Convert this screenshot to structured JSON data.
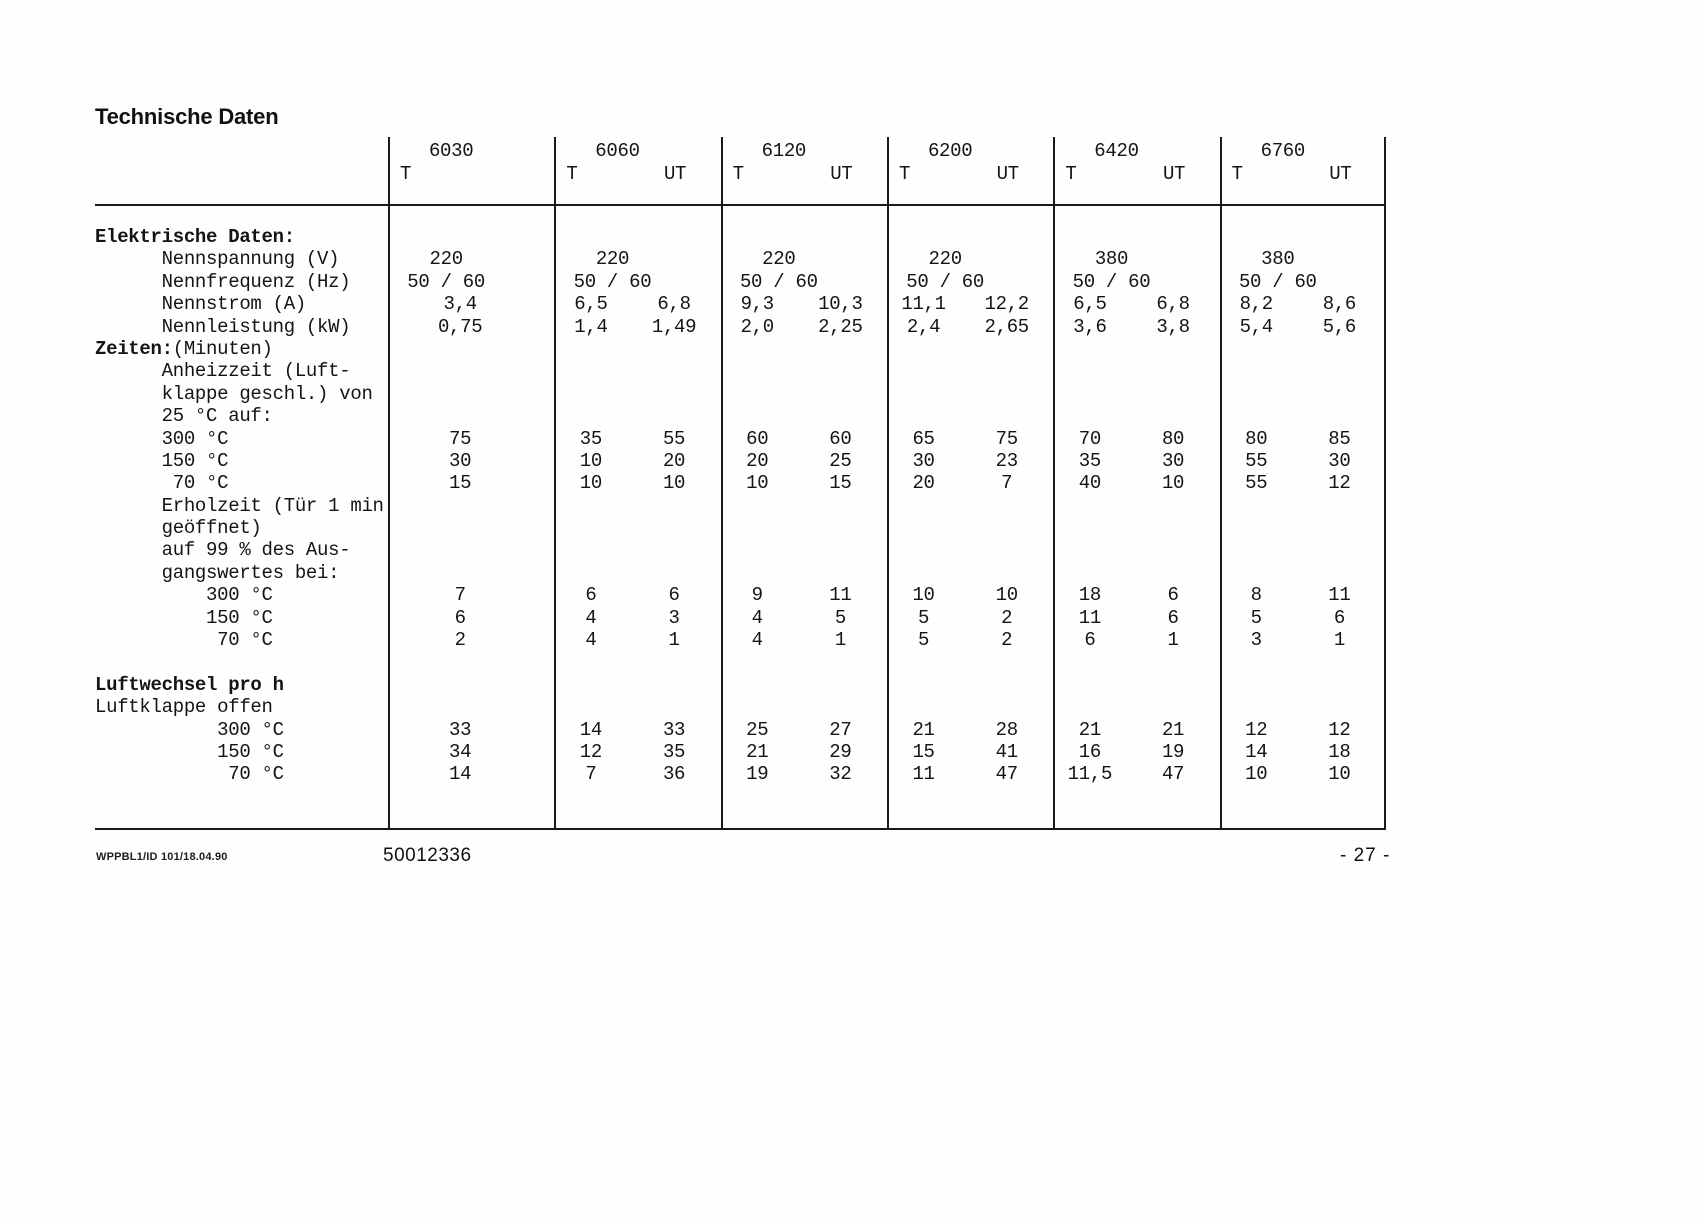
{
  "page": {
    "title": "Technische Daten",
    "footer_code": "WPPBL1/ID 101/18.04.90",
    "footer_doc_number": "50012336",
    "footer_page_number": "- 27 -"
  },
  "table": {
    "models": [
      {
        "name": "6030",
        "sub": [
          "T"
        ]
      },
      {
        "name": "6060",
        "sub": [
          "T",
          "UT"
        ]
      },
      {
        "name": "6120",
        "sub": [
          "T",
          "UT"
        ]
      },
      {
        "name": "6200",
        "sub": [
          "T",
          "UT"
        ]
      },
      {
        "name": "6420",
        "sub": [
          "T",
          "UT"
        ]
      },
      {
        "name": "6760",
        "sub": [
          "T",
          "UT"
        ]
      }
    ],
    "rows": [
      {
        "label_bold": "Elektrische Daten:",
        "label": ""
      },
      {
        "label": "      Nennspannung (V)",
        "span": [
          "220",
          "220",
          "220",
          "220",
          "380",
          "380"
        ]
      },
      {
        "label": "      Nennfrequenz (Hz)",
        "span": [
          "50 / 60",
          "50 / 60",
          "50 / 60",
          "50 / 60",
          "50 / 60",
          "50 / 60"
        ]
      },
      {
        "label": "      Nennstrom (A)",
        "pairs": [
          [
            "3,4"
          ],
          [
            "6,5",
            "6,8"
          ],
          [
            "9,3",
            "10,3"
          ],
          [
            "11,1",
            "12,2"
          ],
          [
            "6,5",
            "6,8"
          ],
          [
            "8,2",
            "8,6"
          ]
        ]
      },
      {
        "label": "      Nennleistung (kW)",
        "pairs": [
          [
            "0,75"
          ],
          [
            "1,4",
            "1,49"
          ],
          [
            "2,0",
            "2,25"
          ],
          [
            "2,4",
            "2,65"
          ],
          [
            "3,6",
            "3,8"
          ],
          [
            "5,4",
            "5,6"
          ]
        ]
      },
      {
        "label_bold": "Zeiten:",
        "label": "(Minuten)"
      },
      {
        "label": "      Anheizzeit (Luft-"
      },
      {
        "label": "      klappe geschl.) von"
      },
      {
        "label": "      25 °C auf:"
      },
      {
        "label": "      300 °C",
        "pairs": [
          [
            "75"
          ],
          [
            "35",
            "55"
          ],
          [
            "60",
            "60"
          ],
          [
            "65",
            "75"
          ],
          [
            "70",
            "80"
          ],
          [
            "80",
            "85"
          ]
        ]
      },
      {
        "label": "      150 °C",
        "pairs": [
          [
            "30"
          ],
          [
            "10",
            "20"
          ],
          [
            "20",
            "25"
          ],
          [
            "30",
            "23"
          ],
          [
            "35",
            "30"
          ],
          [
            "55",
            "30"
          ]
        ]
      },
      {
        "label": "       70 °C",
        "pairs": [
          [
            "15"
          ],
          [
            "10",
            "10"
          ],
          [
            "10",
            "15"
          ],
          [
            "20",
            "7"
          ],
          [
            "40",
            "10"
          ],
          [
            "55",
            "12"
          ]
        ]
      },
      {
        "label": "      Erholzeit (Tür 1 min"
      },
      {
        "label": "      geöffnet)"
      },
      {
        "label": "      auf 99 % des Aus-"
      },
      {
        "label": "      gangswertes bei:"
      },
      {
        "label": "          300 °C",
        "pairs": [
          [
            "7"
          ],
          [
            "6",
            "6"
          ],
          [
            "9",
            "11"
          ],
          [
            "10",
            "10"
          ],
          [
            "18",
            "6"
          ],
          [
            "8",
            "11"
          ]
        ]
      },
      {
        "label": "          150 °C",
        "pairs": [
          [
            "6"
          ],
          [
            "4",
            "3"
          ],
          [
            "4",
            "5"
          ],
          [
            "5",
            "2"
          ],
          [
            "11",
            "6"
          ],
          [
            "5",
            "6"
          ]
        ]
      },
      {
        "label": "           70 °C",
        "pairs": [
          [
            "2"
          ],
          [
            "4",
            "1"
          ],
          [
            "4",
            "1"
          ],
          [
            "5",
            "2"
          ],
          [
            "6",
            "1"
          ],
          [
            "3",
            "1"
          ]
        ]
      },
      {
        "label": ""
      },
      {
        "label_bold": "Luftwechsel pro h",
        "label": ""
      },
      {
        "label": "Luftklappe offen"
      },
      {
        "label": "           300 °C",
        "pairs": [
          [
            "33"
          ],
          [
            "14",
            "33"
          ],
          [
            "25",
            "27"
          ],
          [
            "21",
            "28"
          ],
          [
            "21",
            "21"
          ],
          [
            "12",
            "12"
          ]
        ]
      },
      {
        "label": "           150 °C",
        "pairs": [
          [
            "34"
          ],
          [
            "12",
            "35"
          ],
          [
            "21",
            "29"
          ],
          [
            "15",
            "41"
          ],
          [
            "16",
            "19"
          ],
          [
            "14",
            "18"
          ]
        ]
      },
      {
        "label": "            70 °C",
        "pairs": [
          [
            "14"
          ],
          [
            "7",
            "36"
          ],
          [
            "19",
            "32"
          ],
          [
            "11",
            "47"
          ],
          [
            "11,5",
            "47"
          ],
          [
            "10",
            "10"
          ]
        ]
      }
    ]
  }
}
